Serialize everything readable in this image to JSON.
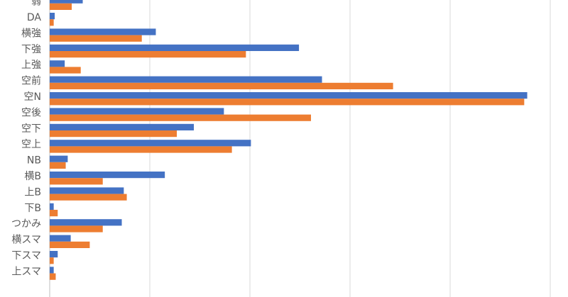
{
  "chart_data": {
    "type": "bar",
    "orientation": "horizontal",
    "categories": [
      "弱",
      "DA",
      "横強",
      "下強",
      "上強",
      "空前",
      "空N",
      "空後",
      "空下",
      "空上",
      "NB",
      "横B",
      "上B",
      "下B",
      "つかみ",
      "横スマ",
      "下スマ",
      "上スマ"
    ],
    "series": [
      {
        "color": "#4472c4",
        "values": [
          0.33,
          0.05,
          1.06,
          2.49,
          0.15,
          2.72,
          4.77,
          1.74,
          1.44,
          2.01,
          0.18,
          1.15,
          0.74,
          0.04,
          0.72,
          0.21,
          0.08,
          0.04
        ]
      },
      {
        "color": "#ed7d31",
        "values": [
          0.22,
          0.04,
          0.92,
          1.96,
          0.31,
          3.43,
          4.74,
          2.61,
          1.27,
          1.82,
          0.16,
          0.53,
          0.77,
          0.08,
          0.53,
          0.4,
          0.04,
          0.06
        ]
      }
    ],
    "xlim": [
      0,
      5
    ],
    "xticks": [
      0,
      1,
      2,
      3,
      4,
      5
    ],
    "grid": true
  }
}
